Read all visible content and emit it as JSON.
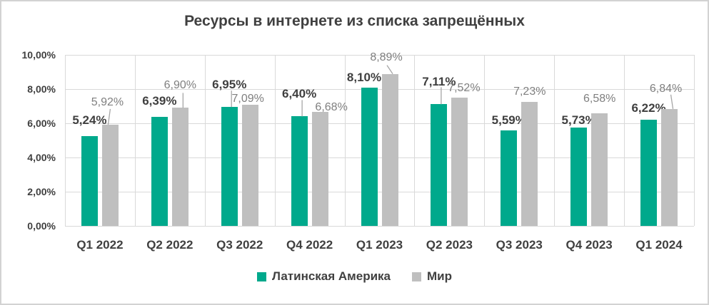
{
  "chart_data": {
    "type": "bar",
    "title": "Ресурсы в интернете из списка запрещённых",
    "categories": [
      "Q1 2022",
      "Q2 2022",
      "Q3 2022",
      "Q4 2022",
      "Q1 2023",
      "Q2 2023",
      "Q3 2023",
      "Q4 2023",
      "Q1 2024"
    ],
    "series": [
      {
        "name": "Латинская Америка",
        "color": "#00a98c",
        "values": [
          5.24,
          6.39,
          6.95,
          6.4,
          8.1,
          7.11,
          5.59,
          5.73,
          6.22
        ],
        "labels": [
          "5,24%",
          "6,39%",
          "6,95%",
          "6,40%",
          "8,10%",
          "7,11%",
          "5,59%",
          "5,73%",
          "6,22%"
        ]
      },
      {
        "name": "Мир",
        "color": "#bfbfbf",
        "values": [
          5.92,
          6.9,
          7.09,
          6.68,
          8.89,
          7.52,
          7.23,
          6.58,
          6.84
        ],
        "labels": [
          "5,92%",
          "6,90%",
          "7,09%",
          "6,68%",
          "8,89%",
          "7,52%",
          "7,23%",
          "6,58%",
          "6,84%"
        ]
      }
    ],
    "y_axis": {
      "min": 0,
      "max": 10,
      "tick_step": 2,
      "tick_labels": [
        "0,00%",
        "2,00%",
        "4,00%",
        "6,00%",
        "8,00%",
        "10,00%"
      ]
    },
    "xlabel": "",
    "ylabel": "",
    "grid": true,
    "legend_position": "bottom",
    "colors": {
      "title_text": "#404040",
      "axis_text": "#404040",
      "series_label_dark": "#3f3f3f",
      "series_label_gray": "#7f7f7f",
      "gridline": "#d9d9d9",
      "leader_line": "#a6a6a6",
      "frame_border": "#d2d2d2"
    }
  }
}
